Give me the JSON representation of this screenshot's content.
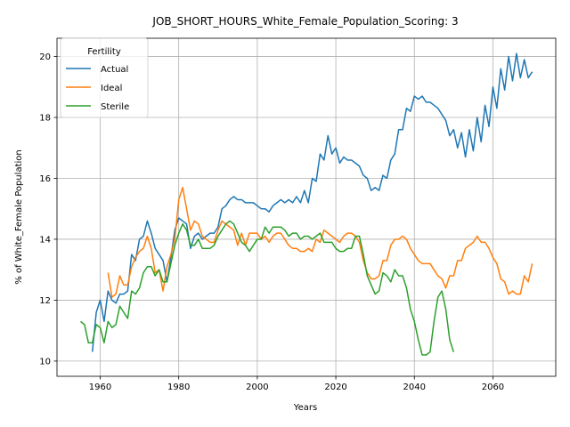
{
  "chart_data": {
    "type": "line",
    "title": "JOB_SHORT_HOURS_White_Female_Population_Scoring: 3",
    "xlabel": "Years",
    "ylabel": "% of White_Female Population",
    "xlim": [
      1949,
      2076
    ],
    "ylim": [
      9.5,
      20.6
    ],
    "xticks": [
      1960,
      1980,
      2000,
      2020,
      2040,
      2060
    ],
    "yticks": [
      10,
      12,
      14,
      16,
      18,
      20
    ],
    "grid": true,
    "legend": {
      "title": "Fertility",
      "position": "top-left"
    },
    "colors": {
      "Actual": "#1f77b4",
      "Ideal": "#ff7f0e",
      "Sterile": "#2ca02c"
    },
    "series": [
      {
        "name": "Actual",
        "points": [
          [
            1958,
            10.3
          ],
          [
            1959,
            11.6
          ],
          [
            1960,
            12.0
          ],
          [
            1961,
            11.3
          ],
          [
            1962,
            12.3
          ],
          [
            1963,
            12.0
          ],
          [
            1964,
            11.9
          ],
          [
            1965,
            12.2
          ],
          [
            1966,
            12.2
          ],
          [
            1967,
            12.3
          ],
          [
            1968,
            13.5
          ],
          [
            1969,
            13.3
          ],
          [
            1970,
            14.0
          ],
          [
            1971,
            14.1
          ],
          [
            1972,
            14.6
          ],
          [
            1973,
            14.2
          ],
          [
            1974,
            13.7
          ],
          [
            1975,
            13.5
          ],
          [
            1976,
            13.3
          ],
          [
            1977,
            12.6
          ],
          [
            1978,
            13.4
          ],
          [
            1979,
            14.3
          ],
          [
            1980,
            14.7
          ],
          [
            1981,
            14.6
          ],
          [
            1982,
            14.5
          ],
          [
            1983,
            13.7
          ],
          [
            1984,
            14.1
          ],
          [
            1985,
            14.2
          ],
          [
            1986,
            14.0
          ],
          [
            1987,
            14.1
          ],
          [
            1988,
            14.2
          ],
          [
            1989,
            14.2
          ],
          [
            1990,
            14.4
          ],
          [
            1991,
            15.0
          ],
          [
            1992,
            15.1
          ],
          [
            1993,
            15.3
          ],
          [
            1994,
            15.4
          ],
          [
            1995,
            15.3
          ],
          [
            1996,
            15.3
          ],
          [
            1997,
            15.2
          ],
          [
            1998,
            15.2
          ],
          [
            1999,
            15.2
          ],
          [
            2000,
            15.1
          ],
          [
            2001,
            15.0
          ],
          [
            2002,
            15.0
          ],
          [
            2003,
            14.9
          ],
          [
            2004,
            15.1
          ],
          [
            2005,
            15.2
          ],
          [
            2006,
            15.3
          ],
          [
            2007,
            15.2
          ],
          [
            2008,
            15.3
          ],
          [
            2009,
            15.2
          ],
          [
            2010,
            15.4
          ],
          [
            2011,
            15.2
          ],
          [
            2012,
            15.6
          ],
          [
            2013,
            15.2
          ],
          [
            2014,
            16.0
          ],
          [
            2015,
            15.9
          ],
          [
            2016,
            16.8
          ],
          [
            2017,
            16.6
          ],
          [
            2018,
            17.4
          ],
          [
            2019,
            16.8
          ],
          [
            2020,
            17.0
          ],
          [
            2021,
            16.5
          ],
          [
            2022,
            16.7
          ],
          [
            2023,
            16.6
          ],
          [
            2024,
            16.6
          ],
          [
            2025,
            16.5
          ],
          [
            2026,
            16.4
          ],
          [
            2027,
            16.1
          ],
          [
            2028,
            16.0
          ],
          [
            2029,
            15.6
          ],
          [
            2030,
            15.7
          ],
          [
            2031,
            15.6
          ],
          [
            2032,
            16.1
          ],
          [
            2033,
            16.0
          ],
          [
            2034,
            16.6
          ],
          [
            2035,
            16.8
          ],
          [
            2036,
            17.6
          ],
          [
            2037,
            17.6
          ],
          [
            2038,
            18.3
          ],
          [
            2039,
            18.2
          ],
          [
            2040,
            18.7
          ],
          [
            2041,
            18.6
          ],
          [
            2042,
            18.7
          ],
          [
            2043,
            18.5
          ],
          [
            2044,
            18.5
          ],
          [
            2045,
            18.4
          ],
          [
            2046,
            18.3
          ],
          [
            2047,
            18.1
          ],
          [
            2048,
            17.9
          ],
          [
            2049,
            17.4
          ],
          [
            2050,
            17.6
          ],
          [
            2051,
            17.0
          ],
          [
            2052,
            17.5
          ],
          [
            2053,
            16.7
          ],
          [
            2054,
            17.6
          ],
          [
            2055,
            16.9
          ],
          [
            2056,
            18.0
          ],
          [
            2057,
            17.2
          ],
          [
            2058,
            18.4
          ],
          [
            2059,
            17.7
          ],
          [
            2060,
            19.0
          ],
          [
            2061,
            18.3
          ],
          [
            2062,
            19.6
          ],
          [
            2063,
            18.9
          ],
          [
            2064,
            20.0
          ],
          [
            2065,
            19.2
          ],
          [
            2066,
            20.1
          ],
          [
            2067,
            19.3
          ],
          [
            2068,
            19.9
          ],
          [
            2069,
            19.3
          ],
          [
            2070,
            19.5
          ]
        ]
      },
      {
        "name": "Ideal",
        "points": [
          [
            1962,
            12.9
          ],
          [
            1963,
            12.1
          ],
          [
            1964,
            12.2
          ],
          [
            1965,
            12.8
          ],
          [
            1966,
            12.5
          ],
          [
            1967,
            12.5
          ],
          [
            1968,
            13.1
          ],
          [
            1969,
            13.4
          ],
          [
            1970,
            13.6
          ],
          [
            1971,
            13.7
          ],
          [
            1972,
            14.1
          ],
          [
            1973,
            13.7
          ],
          [
            1974,
            12.9
          ],
          [
            1975,
            13.0
          ],
          [
            1976,
            12.3
          ],
          [
            1977,
            13.1
          ],
          [
            1978,
            13.5
          ],
          [
            1979,
            14.0
          ],
          [
            1980,
            15.3
          ],
          [
            1981,
            15.7
          ],
          [
            1982,
            15.0
          ],
          [
            1983,
            14.3
          ],
          [
            1984,
            14.6
          ],
          [
            1985,
            14.5
          ],
          [
            1986,
            14.1
          ],
          [
            1987,
            14.0
          ],
          [
            1988,
            13.9
          ],
          [
            1989,
            13.9
          ],
          [
            1990,
            14.3
          ],
          [
            1991,
            14.6
          ],
          [
            1992,
            14.5
          ],
          [
            1993,
            14.4
          ],
          [
            1994,
            14.3
          ],
          [
            1995,
            13.8
          ],
          [
            1996,
            14.2
          ],
          [
            1997,
            13.8
          ],
          [
            1998,
            14.2
          ],
          [
            1999,
            14.2
          ],
          [
            2000,
            14.2
          ],
          [
            2001,
            14.0
          ],
          [
            2002,
            14.1
          ],
          [
            2003,
            13.9
          ],
          [
            2004,
            14.1
          ],
          [
            2005,
            14.2
          ],
          [
            2006,
            14.2
          ],
          [
            2007,
            14.0
          ],
          [
            2008,
            13.8
          ],
          [
            2009,
            13.7
          ],
          [
            2010,
            13.7
          ],
          [
            2011,
            13.6
          ],
          [
            2012,
            13.6
          ],
          [
            2013,
            13.7
          ],
          [
            2014,
            13.6
          ],
          [
            2015,
            14.0
          ],
          [
            2016,
            13.9
          ],
          [
            2017,
            14.3
          ],
          [
            2018,
            14.2
          ],
          [
            2019,
            14.1
          ],
          [
            2020,
            14.0
          ],
          [
            2021,
            13.9
          ],
          [
            2022,
            14.1
          ],
          [
            2023,
            14.2
          ],
          [
            2024,
            14.2
          ],
          [
            2025,
            14.1
          ],
          [
            2026,
            13.9
          ],
          [
            2027,
            13.3
          ],
          [
            2028,
            12.9
          ],
          [
            2029,
            12.7
          ],
          [
            2030,
            12.7
          ],
          [
            2031,
            12.8
          ],
          [
            2032,
            13.3
          ],
          [
            2033,
            13.3
          ],
          [
            2034,
            13.8
          ],
          [
            2035,
            14.0
          ],
          [
            2036,
            14.0
          ],
          [
            2037,
            14.1
          ],
          [
            2038,
            14.0
          ],
          [
            2039,
            13.7
          ],
          [
            2040,
            13.5
          ],
          [
            2041,
            13.3
          ],
          [
            2042,
            13.2
          ],
          [
            2043,
            13.2
          ],
          [
            2044,
            13.2
          ],
          [
            2045,
            13.0
          ],
          [
            2046,
            12.8
          ],
          [
            2047,
            12.7
          ],
          [
            2048,
            12.4
          ],
          [
            2049,
            12.8
          ],
          [
            2050,
            12.8
          ],
          [
            2051,
            13.3
          ],
          [
            2052,
            13.3
          ],
          [
            2053,
            13.7
          ],
          [
            2054,
            13.8
          ],
          [
            2055,
            13.9
          ],
          [
            2056,
            14.1
          ],
          [
            2057,
            13.9
          ],
          [
            2058,
            13.9
          ],
          [
            2059,
            13.7
          ],
          [
            2060,
            13.4
          ],
          [
            2061,
            13.2
          ],
          [
            2062,
            12.7
          ],
          [
            2063,
            12.6
          ],
          [
            2064,
            12.2
          ],
          [
            2065,
            12.3
          ],
          [
            2066,
            12.2
          ],
          [
            2067,
            12.2
          ],
          [
            2068,
            12.8
          ],
          [
            2069,
            12.6
          ],
          [
            2070,
            13.2
          ]
        ]
      },
      {
        "name": "Sterile",
        "points": [
          [
            1955,
            11.3
          ],
          [
            1956,
            11.2
          ],
          [
            1957,
            10.6
          ],
          [
            1958,
            10.6
          ],
          [
            1959,
            11.2
          ],
          [
            1960,
            11.1
          ],
          [
            1961,
            10.6
          ],
          [
            1962,
            11.3
          ],
          [
            1963,
            11.1
          ],
          [
            1964,
            11.2
          ],
          [
            1965,
            11.8
          ],
          [
            1966,
            11.6
          ],
          [
            1967,
            11.4
          ],
          [
            1968,
            12.3
          ],
          [
            1969,
            12.2
          ],
          [
            1970,
            12.4
          ],
          [
            1971,
            12.9
          ],
          [
            1972,
            13.1
          ],
          [
            1973,
            13.1
          ],
          [
            1974,
            12.8
          ],
          [
            1975,
            13.0
          ],
          [
            1976,
            12.6
          ],
          [
            1977,
            12.6
          ],
          [
            1978,
            13.2
          ],
          [
            1979,
            13.8
          ],
          [
            1980,
            14.2
          ],
          [
            1981,
            14.5
          ],
          [
            1982,
            14.3
          ],
          [
            1983,
            13.8
          ],
          [
            1984,
            13.8
          ],
          [
            1985,
            14.0
          ],
          [
            1986,
            13.7
          ],
          [
            1987,
            13.7
          ],
          [
            1988,
            13.7
          ],
          [
            1989,
            13.8
          ],
          [
            1990,
            14.1
          ],
          [
            1991,
            14.3
          ],
          [
            1992,
            14.5
          ],
          [
            1993,
            14.6
          ],
          [
            1994,
            14.5
          ],
          [
            1995,
            14.2
          ],
          [
            1996,
            13.9
          ],
          [
            1997,
            13.8
          ],
          [
            1998,
            13.6
          ],
          [
            1999,
            13.8
          ],
          [
            2000,
            14.0
          ],
          [
            2001,
            14.0
          ],
          [
            2002,
            14.4
          ],
          [
            2003,
            14.2
          ],
          [
            2004,
            14.4
          ],
          [
            2005,
            14.4
          ],
          [
            2006,
            14.4
          ],
          [
            2007,
            14.3
          ],
          [
            2008,
            14.1
          ],
          [
            2009,
            14.2
          ],
          [
            2010,
            14.2
          ],
          [
            2011,
            14.0
          ],
          [
            2012,
            14.1
          ],
          [
            2013,
            14.1
          ],
          [
            2014,
            14.0
          ],
          [
            2015,
            14.1
          ],
          [
            2016,
            14.2
          ],
          [
            2017,
            13.9
          ],
          [
            2018,
            13.9
          ],
          [
            2019,
            13.9
          ],
          [
            2020,
            13.7
          ],
          [
            2021,
            13.6
          ],
          [
            2022,
            13.6
          ],
          [
            2023,
            13.7
          ],
          [
            2024,
            13.7
          ],
          [
            2025,
            14.1
          ],
          [
            2026,
            14.1
          ],
          [
            2027,
            13.5
          ],
          [
            2028,
            12.8
          ],
          [
            2029,
            12.5
          ],
          [
            2030,
            12.2
          ],
          [
            2031,
            12.3
          ],
          [
            2032,
            12.9
          ],
          [
            2033,
            12.8
          ],
          [
            2034,
            12.6
          ],
          [
            2035,
            13.0
          ],
          [
            2036,
            12.8
          ],
          [
            2037,
            12.8
          ],
          [
            2038,
            12.4
          ],
          [
            2039,
            11.7
          ],
          [
            2040,
            11.3
          ],
          [
            2041,
            10.7
          ],
          [
            2042,
            10.2
          ],
          [
            2043,
            10.2
          ],
          [
            2044,
            10.3
          ],
          [
            2045,
            11.3
          ],
          [
            2046,
            12.1
          ],
          [
            2047,
            12.3
          ],
          [
            2048,
            11.7
          ],
          [
            2049,
            10.7
          ],
          [
            2050,
            10.3
          ]
        ]
      }
    ]
  }
}
